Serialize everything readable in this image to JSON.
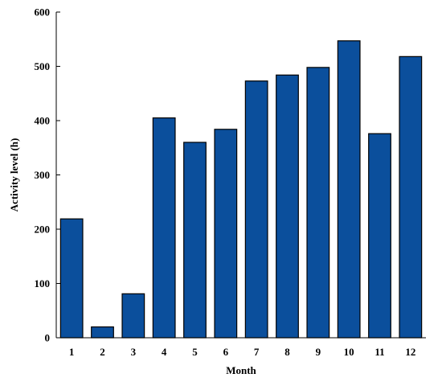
{
  "chart_data": {
    "type": "bar",
    "categories": [
      "1",
      "2",
      "3",
      "4",
      "5",
      "6",
      "7",
      "8",
      "9",
      "10",
      "11",
      "12"
    ],
    "values": [
      219,
      20,
      81,
      405,
      360,
      384,
      473,
      484,
      498,
      547,
      376,
      518
    ],
    "title": "",
    "xlabel": "Month",
    "ylabel": "Activity level (h)",
    "ylim": [
      0,
      600
    ],
    "yticks": [
      0,
      100,
      200,
      300,
      400,
      500,
      600
    ],
    "grid": false,
    "legend": "none",
    "bar_color": "#0b4f9c",
    "bar_edge_color": "#000000"
  }
}
